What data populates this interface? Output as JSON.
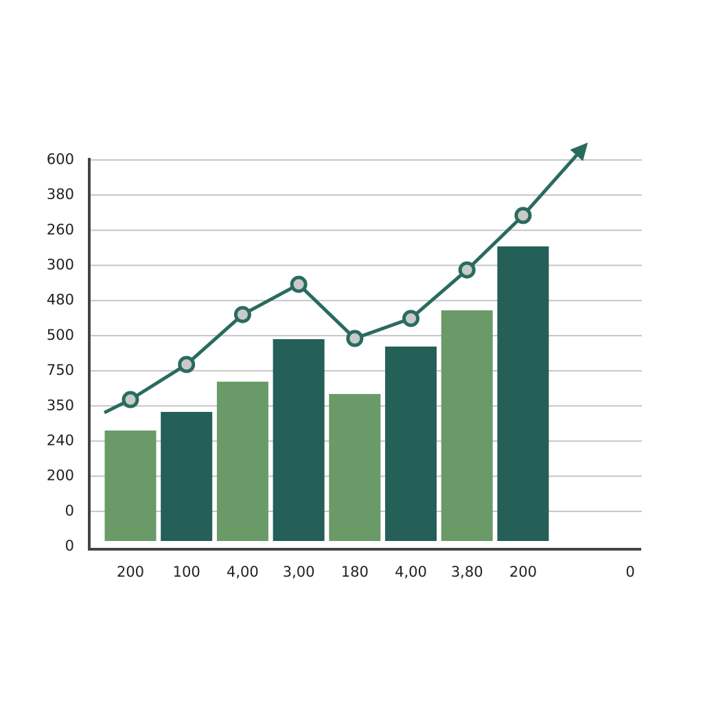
{
  "chart_data": {
    "type": "bar",
    "categories": [
      "200",
      "100",
      "4,00",
      "3,00",
      "180",
      "4,00",
      "3,80",
      "200",
      "0"
    ],
    "series": [
      {
        "type": "bar",
        "colors": [
          "#6a9a68",
          "#245f58",
          "#6a9a68",
          "#245f58",
          "#6a9a68",
          "#245f58",
          "#6a9a68",
          "#245f58",
          null
        ],
        "values": [
          3.3,
          3.83,
          4.69,
          5.9,
          4.34,
          5.69,
          6.72,
          8.54,
          null
        ]
      },
      {
        "type": "line",
        "color": "#2a6b5f",
        "values": [
          4.18,
          5.18,
          6.6,
          7.46,
          5.92,
          6.49,
          7.87,
          9.42,
          null
        ]
      }
    ],
    "ylim": [
      0,
      11
    ],
    "yticks": [
      {
        "value": 0,
        "label": "0"
      },
      {
        "value": 1,
        "label": "0"
      },
      {
        "value": 2,
        "label": "200"
      },
      {
        "value": 3,
        "label": "240"
      },
      {
        "value": 4,
        "label": "350"
      },
      {
        "value": 5,
        "label": "750"
      },
      {
        "value": 6,
        "label": "500"
      },
      {
        "value": 7,
        "label": "480"
      },
      {
        "value": 8,
        "label": "300"
      },
      {
        "value": 9,
        "label": "260"
      },
      {
        "value": 10,
        "label": "380"
      },
      {
        "value": 11,
        "label": "600"
      }
    ],
    "grid": true
  }
}
